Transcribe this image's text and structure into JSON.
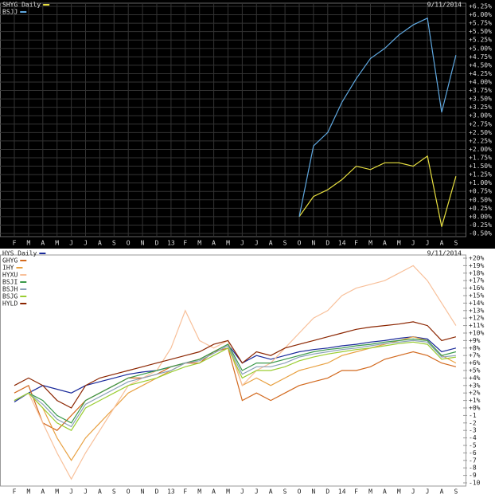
{
  "chart_data": [
    {
      "type": "line",
      "date": "9/11/2014",
      "grid": true,
      "categories": [
        "F",
        "M",
        "A",
        "M",
        "J",
        "J",
        "A",
        "S",
        "O",
        "N",
        "D",
        "13",
        "F",
        "M",
        "A",
        "M",
        "J",
        "J",
        "A",
        "S",
        "O",
        "N",
        "D",
        "14",
        "F",
        "M",
        "A",
        "M",
        "J",
        "J",
        "A",
        "S"
      ],
      "series": [
        {
          "name": "SHYG Daily",
          "color": "#e8e040",
          "values": [
            null,
            null,
            null,
            null,
            null,
            null,
            null,
            null,
            null,
            null,
            null,
            null,
            null,
            null,
            null,
            null,
            null,
            null,
            null,
            null,
            0.0,
            0.6,
            0.8,
            1.1,
            1.5,
            1.4,
            1.6,
            1.6,
            1.5,
            1.8,
            -0.3,
            1.2
          ]
        },
        {
          "name": "BSJJ",
          "color": "#5fa8e0",
          "values": [
            null,
            null,
            null,
            null,
            null,
            null,
            null,
            null,
            null,
            null,
            null,
            null,
            null,
            null,
            null,
            null,
            null,
            null,
            null,
            null,
            0.0,
            2.1,
            2.5,
            3.4,
            4.1,
            4.7,
            5.0,
            5.4,
            5.7,
            5.9,
            3.1,
            4.8
          ]
        }
      ],
      "ylim": [
        -0.5,
        6.25
      ],
      "yticks": [
        {
          "value": 6.25,
          "label": "+6.25%"
        },
        {
          "value": 6,
          "label": "+6.00%"
        },
        {
          "value": 5.75,
          "label": "+5.75%"
        },
        {
          "value": 5.5,
          "label": "+5.50%"
        },
        {
          "value": 5.25,
          "label": "+5.25%"
        },
        {
          "value": 5,
          "label": "+5.00%"
        },
        {
          "value": 4.75,
          "label": "+4.75%"
        },
        {
          "value": 4.5,
          "label": "+4.50%"
        },
        {
          "value": 4.25,
          "label": "+4.25%"
        },
        {
          "value": 4,
          "label": "+4.00%"
        },
        {
          "value": 3.75,
          "label": "+3.75%"
        },
        {
          "value": 3.5,
          "label": "+3.50%"
        },
        {
          "value": 3.25,
          "label": "+3.25%"
        },
        {
          "value": 3,
          "label": "+3.00%"
        },
        {
          "value": 2.75,
          "label": "+2.75%"
        },
        {
          "value": 2.5,
          "label": "+2.50%"
        },
        {
          "value": 2.25,
          "label": "+2.25%"
        },
        {
          "value": 2,
          "label": "+2.00%"
        },
        {
          "value": 1.75,
          "label": "+1.75%"
        },
        {
          "value": 1.5,
          "label": "+1.50%"
        },
        {
          "value": 1.25,
          "label": "+1.25%"
        },
        {
          "value": 1,
          "label": "+1.00%"
        },
        {
          "value": 0.75,
          "label": "+0.75%"
        },
        {
          "value": 0.5,
          "label": "+0.50%"
        },
        {
          "value": 0.25,
          "label": "+0.25%"
        },
        {
          "value": 0,
          "label": "+0.00%"
        },
        {
          "value": -0.25,
          "label": "-0.25%"
        },
        {
          "value": -0.5,
          "label": "-0.50%"
        }
      ]
    },
    {
      "type": "line",
      "date": "9/11/2014",
      "grid": false,
      "categories": [
        "F",
        "M",
        "A",
        "M",
        "J",
        "J",
        "A",
        "S",
        "O",
        "N",
        "D",
        "13",
        "F",
        "M",
        "A",
        "M",
        "J",
        "J",
        "A",
        "S",
        "O",
        "N",
        "D",
        "14",
        "F",
        "M",
        "A",
        "M",
        "J",
        "J",
        "A",
        "S"
      ],
      "series": [
        {
          "name": "HYS Daily",
          "color": "#1a2a9a",
          "values": [
            0.8,
            2,
            3,
            2.5,
            2,
            3,
            3.5,
            4,
            4.5,
            4.8,
            5,
            5.5,
            6,
            6.5,
            7.5,
            8.5,
            6,
            7,
            6.5,
            7,
            7.5,
            7.8,
            8,
            8.3,
            8.5,
            8.8,
            9,
            9.3,
            9.5,
            9.2,
            7.5,
            8
          ]
        },
        {
          "name": "GHYG",
          "color": "#d2691e",
          "values": [
            2,
            3,
            -2,
            -3,
            -1,
            1,
            2,
            3,
            4,
            4,
            4.5,
            5.5,
            6,
            6,
            7.5,
            8,
            1,
            2,
            1,
            2,
            3,
            3.5,
            4,
            5,
            5,
            5.5,
            6.5,
            7,
            7.5,
            7,
            6,
            5.5
          ]
        },
        {
          "name": "IHY",
          "color": "#e8a040",
          "values": [
            1,
            2,
            0,
            -4,
            -7,
            -4,
            -2,
            0,
            2,
            3,
            4,
            5,
            6,
            6.5,
            7.5,
            8.5,
            3,
            4,
            3,
            4,
            5,
            5.5,
            6,
            7,
            7.5,
            8,
            8.5,
            9,
            9.5,
            9,
            7,
            6
          ]
        },
        {
          "name": "HYXU",
          "color": "#f8c09a",
          "values": [
            1,
            2,
            -2,
            -6,
            -9.5,
            -6,
            -3,
            0,
            3,
            4,
            5,
            8,
            13,
            9,
            8,
            9,
            3,
            5,
            6,
            8,
            10,
            12,
            13,
            15,
            16,
            16.5,
            17,
            18,
            19,
            17,
            14,
            11
          ]
        },
        {
          "name": "BSJI",
          "color": "#3a9a4a",
          "values": [
            1,
            2,
            1,
            -1,
            -2,
            1,
            2,
            3,
            4,
            4.5,
            5,
            5.5,
            6,
            6.5,
            7.5,
            8.5,
            5,
            6,
            6,
            6.5,
            7,
            7.5,
            7.8,
            8,
            8.3,
            8.5,
            8.8,
            9,
            9.2,
            9,
            7,
            7.5
          ]
        },
        {
          "name": "BSJH",
          "color": "#8aa0b8",
          "values": [
            1,
            2,
            0.5,
            -1.5,
            -2.5,
            0.5,
            1.5,
            2.5,
            3.5,
            4,
            4.5,
            5,
            6,
            6.3,
            7.3,
            8.3,
            4.5,
            5.5,
            5.5,
            6,
            6.8,
            7.2,
            7.5,
            7.8,
            8,
            8.3,
            8.6,
            8.8,
            9,
            8.8,
            6.8,
            7
          ]
        },
        {
          "name": "BSJG",
          "color": "#9acd32",
          "values": [
            1,
            2,
            0,
            -2,
            -3,
            0,
            1,
            2,
            3,
            3.5,
            4,
            4.8,
            5.5,
            6,
            7,
            8,
            4,
            5,
            5,
            5.5,
            6.3,
            6.8,
            7.2,
            7.5,
            7.8,
            8,
            8.3,
            8.6,
            8.8,
            8.5,
            6.5,
            6.8
          ]
        },
        {
          "name": "HYLD",
          "color": "#8b2500",
          "values": [
            3,
            4,
            3,
            1,
            0,
            3,
            4,
            4.5,
            5,
            5.5,
            6,
            6.5,
            7,
            7.5,
            8.5,
            9,
            6,
            7.5,
            7,
            8,
            8.5,
            9,
            9.5,
            10,
            10.5,
            10.8,
            11,
            11.2,
            11.5,
            11,
            9,
            9.5
          ]
        }
      ],
      "ylim": [
        -10,
        20
      ],
      "yticks": [
        {
          "value": 20,
          "label": "+20%"
        },
        {
          "value": 19,
          "label": "+19%"
        },
        {
          "value": 18,
          "label": "+18%"
        },
        {
          "value": 17,
          "label": "+17%"
        },
        {
          "value": 16,
          "label": "+16%"
        },
        {
          "value": 15,
          "label": "+15%"
        },
        {
          "value": 14,
          "label": "+14%"
        },
        {
          "value": 13,
          "label": "+13%"
        },
        {
          "value": 12,
          "label": "+12%"
        },
        {
          "value": 11,
          "label": "+11%"
        },
        {
          "value": 10,
          "label": "+10%"
        },
        {
          "value": 9,
          "label": "+9%"
        },
        {
          "value": 8,
          "label": "+8%"
        },
        {
          "value": 7,
          "label": "+7%"
        },
        {
          "value": 6,
          "label": "+6%"
        },
        {
          "value": 5,
          "label": "+5%"
        },
        {
          "value": 4,
          "label": "+4%"
        },
        {
          "value": 3,
          "label": "+3%"
        },
        {
          "value": 2,
          "label": "+2%"
        },
        {
          "value": 1,
          "label": "+1%"
        },
        {
          "value": 0,
          "label": "+0%"
        },
        -1,
        -2,
        -3,
        -4,
        -5,
        -6,
        -7,
        -8,
        -9,
        -10
      ]
    }
  ]
}
